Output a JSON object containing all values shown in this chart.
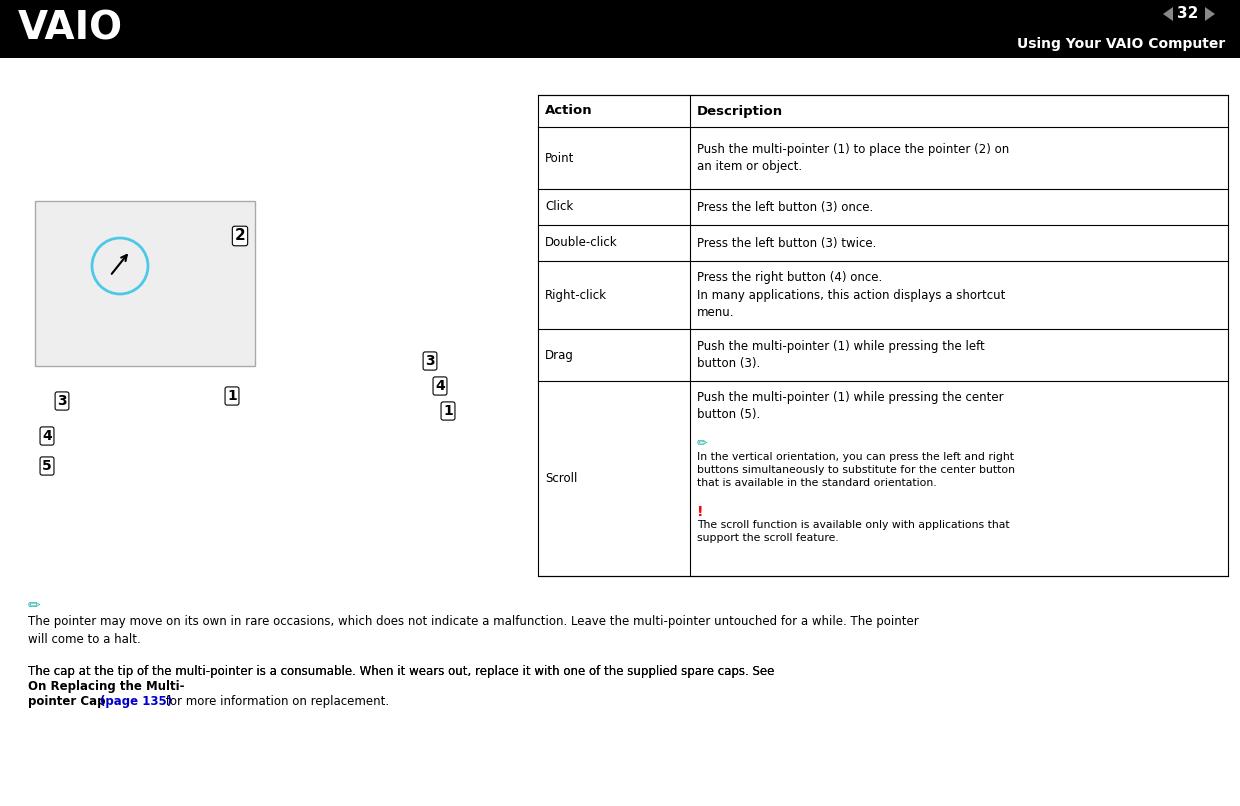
{
  "bg_color": "#ffffff",
  "header_bg": "#000000",
  "header_text_color": "#ffffff",
  "page_number": "32",
  "header_title": "Using Your VAIO Computer",
  "note_icon_color": "#20b2aa",
  "warning_icon_color": "#ff0000",
  "note1_text": "The pointer may move on its own in rare occasions, which does not indicate a malfunction. Leave the multi-pointer untouched for a while. The pointer\nwill come to a halt.",
  "note2_text_plain": "The cap at the tip of the multi-pointer is a consumable. When it wears out, replace it with one of the supplied spare caps. See ",
  "note2_bold": "On Replacing the Multi-\npointer Cap ",
  "note2_link": "(page 135)",
  "note2_suffix": " for more information on replacement.",
  "body_fontsize": 8.5,
  "table_fontsize": 8.5,
  "header_fontsize": 10,
  "link_color": "#0000cd"
}
